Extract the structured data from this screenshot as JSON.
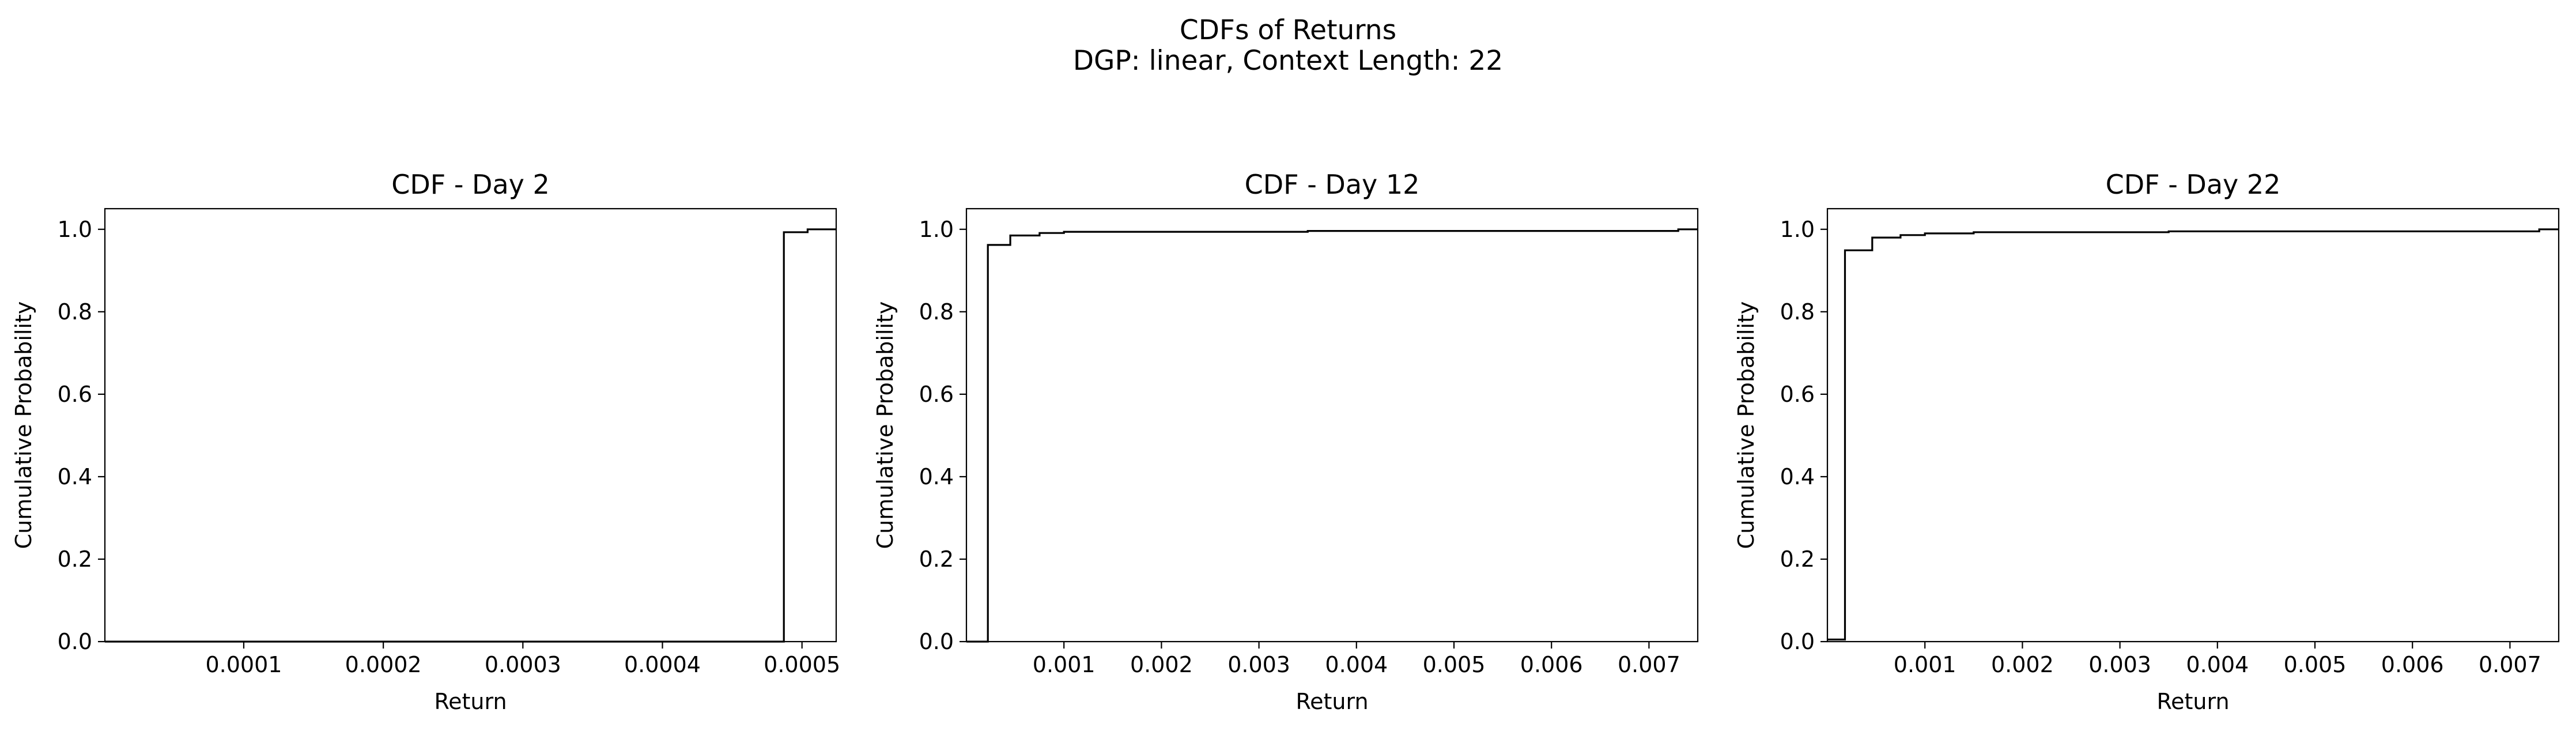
{
  "figure": {
    "title_line1": "CDFs of Returns",
    "title_line2": "DGP: linear, Context Length: 22"
  },
  "chart_data": [
    {
      "type": "line",
      "step": "post",
      "title": "CDF - Day 2",
      "xlabel": "Return",
      "ylabel": "Cumulative Probability",
      "xlim": [
        5e-07,
        0.0005245
      ],
      "ylim": [
        0,
        1.05
      ],
      "xticks": [
        0.0001,
        0.0002,
        0.0003,
        0.0004,
        0.0005
      ],
      "xtick_labels": [
        "0.0001",
        "0.0002",
        "0.0003",
        "0.0004",
        "0.0005"
      ],
      "yticks": [
        0.0,
        0.2,
        0.4,
        0.6,
        0.8,
        1.0
      ],
      "ytick_labels": [
        "0.0",
        "0.2",
        "0.4",
        "0.6",
        "0.8",
        "1.0"
      ],
      "grid": false,
      "series": [
        {
          "x": [
            5e-07,
            0.000487,
            0.000504,
            0.0005245
          ],
          "y": [
            0.0,
            0.993,
            1.0,
            1.0
          ]
        }
      ]
    },
    {
      "type": "line",
      "step": "post",
      "title": "CDF - Day 12",
      "xlabel": "Return",
      "ylabel": "Cumulative Probability",
      "xlim": [
        0.0,
        0.0075
      ],
      "ylim": [
        0,
        1.05
      ],
      "xticks": [
        0.001,
        0.002,
        0.003,
        0.004,
        0.005,
        0.006,
        0.007
      ],
      "xtick_labels": [
        "0.001",
        "0.002",
        "0.003",
        "0.004",
        "0.005",
        "0.006",
        "0.007"
      ],
      "yticks": [
        0.0,
        0.2,
        0.4,
        0.6,
        0.8,
        1.0
      ],
      "ytick_labels": [
        "0.0",
        "0.2",
        "0.4",
        "0.6",
        "0.8",
        "1.0"
      ],
      "grid": false,
      "series": [
        {
          "x": [
            0.0,
            0.00022,
            0.00045,
            0.00075,
            0.001,
            0.0035,
            0.0073,
            0.0075
          ],
          "y": [
            0.0,
            0.962,
            0.985,
            0.991,
            0.994,
            0.996,
            1.0,
            1.0
          ]
        }
      ]
    },
    {
      "type": "line",
      "step": "post",
      "title": "CDF - Day 22",
      "xlabel": "Return",
      "ylabel": "Cumulative Probability",
      "xlim": [
        0.0,
        0.0075
      ],
      "ylim": [
        0,
        1.05
      ],
      "xticks": [
        0.001,
        0.002,
        0.003,
        0.004,
        0.005,
        0.006,
        0.007
      ],
      "xtick_labels": [
        "0.001",
        "0.002",
        "0.003",
        "0.004",
        "0.005",
        "0.006",
        "0.007"
      ],
      "yticks": [
        0.0,
        0.2,
        0.4,
        0.6,
        0.8,
        1.0
      ],
      "ytick_labels": [
        "0.0",
        "0.2",
        "0.4",
        "0.6",
        "0.8",
        "1.0"
      ],
      "grid": false,
      "series": [
        {
          "x": [
            0.0,
            0.00018,
            0.00046,
            0.00075,
            0.001,
            0.0015,
            0.0035,
            0.0073,
            0.0075
          ],
          "y": [
            0.005,
            0.949,
            0.98,
            0.986,
            0.99,
            0.993,
            0.995,
            1.0,
            1.0
          ]
        }
      ]
    }
  ]
}
